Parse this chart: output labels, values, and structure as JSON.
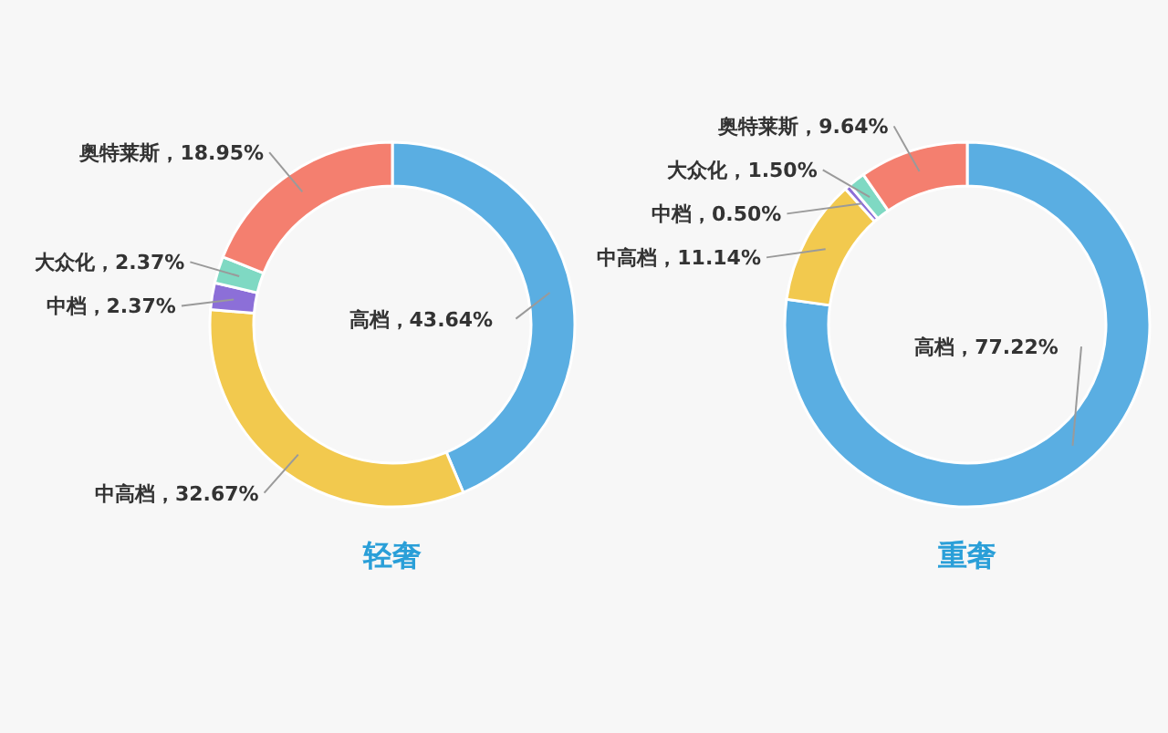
{
  "chart_data": [
    {
      "type": "donut",
      "title": "轻奢",
      "categories": [
        "高档",
        "中高档",
        "中档",
        "大众化",
        "奥特莱斯"
      ],
      "values": [
        43.64,
        32.67,
        2.37,
        2.37,
        18.95
      ],
      "colors": [
        "#5aaee2",
        "#f2c94e",
        "#8c6fd8",
        "#7fd9c3",
        "#f47f6f"
      ],
      "value_labels": [
        "43.64%",
        "32.67%",
        "2.37%",
        "2.37%",
        "18.95%"
      ]
    },
    {
      "type": "donut",
      "title": "重奢",
      "categories": [
        "高档",
        "中高档",
        "中档",
        "大众化",
        "奥特莱斯"
      ],
      "values": [
        77.22,
        11.14,
        0.5,
        1.5,
        9.64
      ],
      "colors": [
        "#5aaee2",
        "#f2c94e",
        "#8c6fd8",
        "#7fd9c3",
        "#f47f6f"
      ],
      "value_labels": [
        "77.22%",
        "11.14%",
        "0.50%",
        "1.50%",
        "9.64%"
      ]
    }
  ]
}
